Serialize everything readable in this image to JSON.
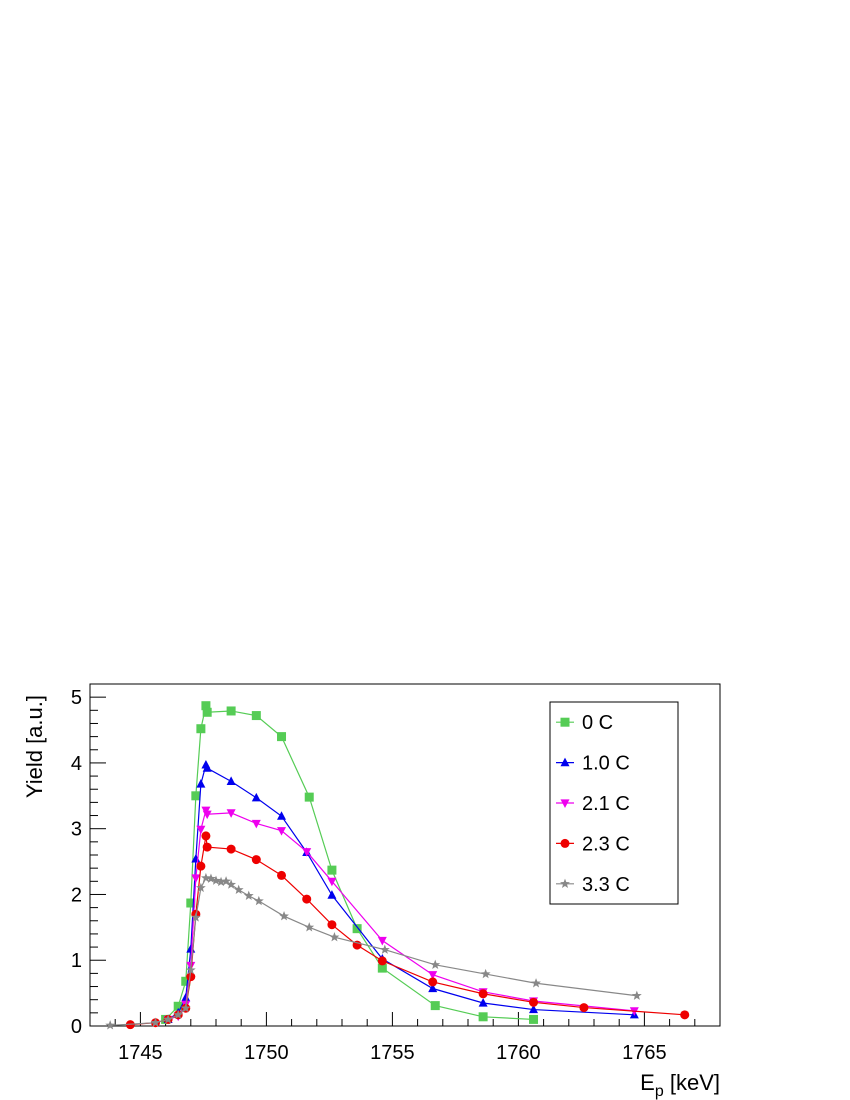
{
  "chart_data": {
    "type": "line",
    "title": "",
    "xlabel_main": "E",
    "xlabel_sub": "p",
    "xlabel_unit": " [keV]",
    "ylabel": "Yield [a.u.]",
    "xlim": [
      1743,
      1768
    ],
    "ylim": [
      0,
      5.2
    ],
    "x_ticks": [
      1745,
      1750,
      1755,
      1760,
      1765
    ],
    "x_tick_labels": [
      "1745",
      "1750",
      "1755",
      "1760",
      "1765"
    ],
    "y_ticks": [
      0,
      1,
      2,
      3,
      4,
      5
    ],
    "y_tick_labels": [
      "0",
      "1",
      "2",
      "3",
      "4",
      "5"
    ],
    "grid": false,
    "legend_position": "top-right",
    "series": [
      {
        "name": "0 C",
        "color": "#55cc55",
        "marker": "square",
        "x": [
          1746.0,
          1746.5,
          1746.8,
          1747.0,
          1747.2,
          1747.4,
          1747.6,
          1747.65,
          1748.6,
          1749.6,
          1750.6,
          1751.7,
          1752.6,
          1753.6,
          1754.6,
          1756.7,
          1758.6,
          1760.6
        ],
        "y": [
          0.1,
          0.3,
          0.68,
          1.87,
          3.5,
          4.52,
          4.87,
          4.77,
          4.79,
          4.72,
          4.4,
          3.48,
          2.37,
          1.48,
          0.88,
          0.31,
          0.14,
          0.1
        ]
      },
      {
        "name": "1.0 C",
        "color": "#0000ee",
        "marker": "triangle-up",
        "x": [
          1746.1,
          1746.5,
          1746.8,
          1747.0,
          1747.2,
          1747.4,
          1747.6,
          1747.65,
          1748.6,
          1749.6,
          1750.6,
          1751.6,
          1752.6,
          1754.6,
          1756.6,
          1758.6,
          1760.6,
          1764.6
        ],
        "y": [
          0.1,
          0.2,
          0.43,
          1.17,
          2.54,
          3.68,
          3.97,
          3.92,
          3.72,
          3.47,
          3.19,
          2.64,
          1.99,
          1.02,
          0.57,
          0.35,
          0.25,
          0.17
        ]
      },
      {
        "name": "2.1 C",
        "color": "#ee00ee",
        "marker": "triangle-down",
        "x": [
          1746.1,
          1746.5,
          1746.8,
          1747.0,
          1747.2,
          1747.4,
          1747.6,
          1747.65,
          1748.6,
          1749.6,
          1750.6,
          1751.6,
          1752.6,
          1754.6,
          1756.6,
          1758.6,
          1760.6,
          1764.6
        ],
        "y": [
          0.1,
          0.15,
          0.33,
          0.92,
          2.25,
          2.99,
          3.28,
          3.22,
          3.24,
          3.08,
          2.97,
          2.65,
          2.2,
          1.3,
          0.78,
          0.52,
          0.38,
          0.23
        ]
      },
      {
        "name": "2.3 C",
        "color": "#ee0000",
        "marker": "circle",
        "x": [
          1744.6,
          1745.6,
          1746.1,
          1746.5,
          1746.8,
          1747.0,
          1747.2,
          1747.4,
          1747.6,
          1747.65,
          1748.6,
          1749.6,
          1750.6,
          1751.6,
          1752.6,
          1753.6,
          1754.6,
          1756.6,
          1758.6,
          1760.6,
          1762.6,
          1766.6
        ],
        "y": [
          0.02,
          0.05,
          0.1,
          0.17,
          0.27,
          0.75,
          1.7,
          2.43,
          2.89,
          2.72,
          2.69,
          2.53,
          2.29,
          1.93,
          1.54,
          1.23,
          0.99,
          0.67,
          0.49,
          0.36,
          0.28,
          0.17
        ]
      },
      {
        "name": "3.3 C",
        "color": "#888888",
        "marker": "star",
        "x": [
          1743.8,
          1745.6,
          1746.1,
          1746.5,
          1746.8,
          1747.0,
          1747.2,
          1747.4,
          1747.6,
          1747.8,
          1748.0,
          1748.2,
          1748.4,
          1748.6,
          1748.9,
          1749.3,
          1749.7,
          1750.7,
          1751.7,
          1752.7,
          1754.7,
          1756.7,
          1758.7,
          1760.7,
          1764.7
        ],
        "y": [
          0.01,
          0.05,
          0.1,
          0.17,
          0.27,
          0.85,
          1.65,
          2.1,
          2.25,
          2.24,
          2.21,
          2.19,
          2.2,
          2.15,
          2.07,
          1.98,
          1.9,
          1.67,
          1.5,
          1.35,
          1.16,
          0.93,
          0.79,
          0.65,
          0.46
        ]
      }
    ]
  }
}
